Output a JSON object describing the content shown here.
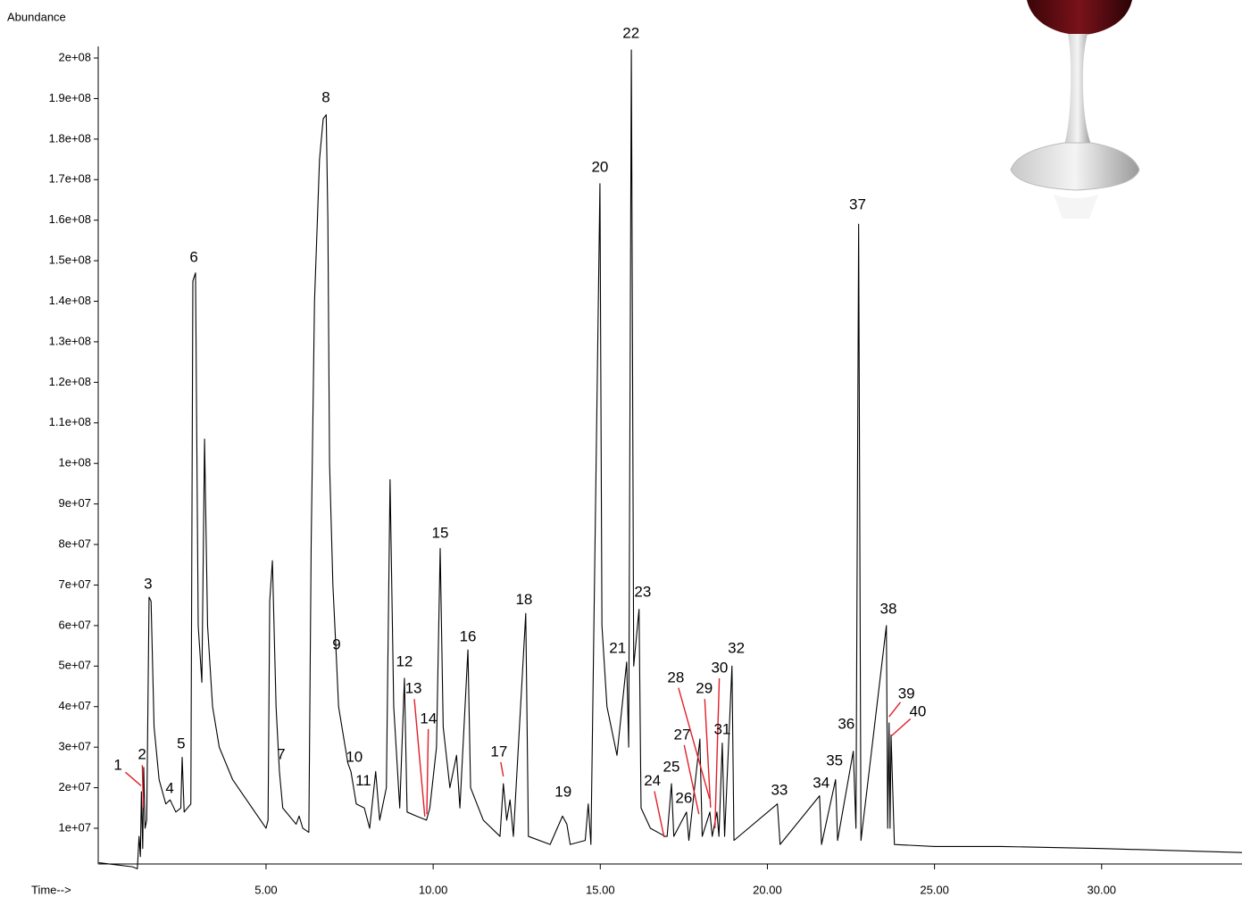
{
  "chart_data": {
    "type": "line",
    "y_axis_label": "Abundance",
    "x_axis_label": "Time-->",
    "xlim": [
      0,
      34.2
    ],
    "ylim": [
      0,
      205000000.0
    ],
    "xticks": [
      {
        "value": 5,
        "label": "5.00"
      },
      {
        "value": 10,
        "label": "10.00"
      },
      {
        "value": 15,
        "label": "15.00"
      },
      {
        "value": 20,
        "label": "20.00"
      },
      {
        "value": 25,
        "label": "25.00"
      },
      {
        "value": 30,
        "label": "30.00"
      }
    ],
    "yticks": [
      {
        "value": 10000000.0,
        "label": "1e+07"
      },
      {
        "value": 20000000.0,
        "label": "2e+07"
      },
      {
        "value": 30000000.0,
        "label": "3e+07"
      },
      {
        "value": 40000000.0,
        "label": "4e+07"
      },
      {
        "value": 50000000.0,
        "label": "5e+07"
      },
      {
        "value": 60000000.0,
        "label": "6e+07"
      },
      {
        "value": 70000000.0,
        "label": "7e+07"
      },
      {
        "value": 80000000.0,
        "label": "8e+07"
      },
      {
        "value": 90000000.0,
        "label": "9e+07"
      },
      {
        "value": 100000000.0,
        "label": "1e+08"
      },
      {
        "value": 110000000.0,
        "label": "1.1e+08"
      },
      {
        "value": 120000000.0,
        "label": "1.2e+08"
      },
      {
        "value": 130000000.0,
        "label": "1.3e+08"
      },
      {
        "value": 140000000.0,
        "label": "1.4e+08"
      },
      {
        "value": 150000000.0,
        "label": "1.5e+08"
      },
      {
        "value": 160000000.0,
        "label": "1.6e+08"
      },
      {
        "value": 170000000.0,
        "label": "1.7e+08"
      },
      {
        "value": 180000000.0,
        "label": "1.8e+08"
      },
      {
        "value": 190000000.0,
        "label": "1.9e+08"
      },
      {
        "value": 200000000.0,
        "label": "2e+08"
      }
    ],
    "x": [
      0,
      1.0,
      1.15,
      1.2,
      1.24,
      1.27,
      1.31,
      1.34,
      1.38,
      1.43,
      1.5,
      1.56,
      1.65,
      1.8,
      2.0,
      2.13,
      2.3,
      2.45,
      2.49,
      2.55,
      2.75,
      2.81,
      2.89,
      2.97,
      3.08,
      3.16,
      3.25,
      3.4,
      3.6,
      4.0,
      4.5,
      5.0,
      5.06,
      5.11,
      5.19,
      5.3,
      5.4,
      5.5,
      5.9,
      5.99,
      6.1,
      6.28,
      6.35,
      6.45,
      6.6,
      6.71,
      6.8,
      6.85,
      6.9,
      7.0,
      7.11,
      7.17,
      7.45,
      7.54,
      7.7,
      7.94,
      8.1,
      8.28,
      8.4,
      8.6,
      8.71,
      8.82,
      9.0,
      9.14,
      9.22,
      9.5,
      9.8,
      9.9,
      10.1,
      10.21,
      10.3,
      10.5,
      10.7,
      10.8,
      11.04,
      11.12,
      11.5,
      12.0,
      12.1,
      12.2,
      12.3,
      12.4,
      12.77,
      12.85,
      13.5,
      13.87,
      14.0,
      14.1,
      14.55,
      14.64,
      14.72,
      14.99,
      15.05,
      15.2,
      15.5,
      15.79,
      15.85,
      15.93,
      16.0,
      16.16,
      16.22,
      16.5,
      16.94,
      17.0,
      17.13,
      17.2,
      17.58,
      17.65,
      17.98,
      18.05,
      18.28,
      18.35,
      18.49,
      18.55,
      18.65,
      18.72,
      18.94,
      19.0,
      20.3,
      20.38,
      21.56,
      21.62,
      22.04,
      22.1,
      22.57,
      22.65,
      22.73,
      22.8,
      23.56,
      23.6,
      23.64,
      23.67,
      23.7,
      23.8,
      25.0,
      27.0,
      30.0,
      34.2
    ],
    "series": [
      {
        "color": "#000000",
        "values": [
          1500000.0,
          500000.0,
          0,
          8000000.0,
          3000000.0,
          19000000.0,
          5000000.0,
          25000000.0,
          10000000.0,
          12000000.0,
          67000000.0,
          66000000.0,
          35000000.0,
          22000000.0,
          16000000.0,
          17000000.0,
          14000000.0,
          15000000.0,
          27500000.0,
          14000000.0,
          16000000.0,
          145000000.0,
          147000000.0,
          60000000.0,
          46000000.0,
          106000000.0,
          60000000.0,
          40000000.0,
          30000000.0,
          22000000.0,
          16000000.0,
          10000000.0,
          12000000.0,
          66000000.0,
          76000000.0,
          40000000.0,
          24000000.0,
          15000000.0,
          11000000.0,
          13000000.0,
          10000000.0,
          9000000.0,
          80000000.0,
          140000000.0,
          175000000.0,
          185000000.0,
          186000000.0,
          160000000.0,
          100000000.0,
          70000000.0,
          51000000.0,
          40000000.0,
          26000000.0,
          24000000.0,
          16000000.0,
          15000000.0,
          10000000.0,
          24000000.0,
          12000000.0,
          20000000.0,
          96000000.0,
          40000000.0,
          15000000.0,
          47000000.0,
          14000000.0,
          13000000.0,
          12000000.0,
          15000000.0,
          30000000.0,
          79000000.0,
          35000000.0,
          20000000.0,
          28000000.0,
          15000000.0,
          54000000.0,
          20000000.0,
          12000000.0,
          8000000.0,
          21000000.0,
          12000000.0,
          17000000.0,
          8000000.0,
          63000000.0,
          8000000.0,
          6000000.0,
          13000000.0,
          11000000.0,
          6000000.0,
          7000000.0,
          16000000.0,
          6000000.0,
          169000000.0,
          60000000.0,
          40000000.0,
          28000000.0,
          51000000.0,
          30000000.0,
          202000000.0,
          50000000.0,
          64000000.0,
          15000000.0,
          10000000.0,
          8000000.0,
          8000000.0,
          21000000.0,
          8000000.0,
          14000000.0,
          7000000.0,
          32000000.0,
          8000000.0,
          14000000.0,
          8000000.0,
          14000000.0,
          8000000.0,
          31000000.0,
          8000000.0,
          50000000.0,
          7000000.0,
          16000000.0,
          6000000.0,
          18000000.0,
          6000000.0,
          22000000.0,
          7000000.0,
          29000000.0,
          10000000.0,
          159000000.0,
          7000000.0,
          60000000.0,
          10000000.0,
          36000000.0,
          10000000.0,
          33000000.0,
          6000000.0,
          5500000.0,
          5500000.0,
          5000000.0,
          4000000.0
        ]
      }
    ],
    "annotations": [
      {
        "label": "1",
        "x": 0.57,
        "y": 25400000.0,
        "arrow_to": [
          1.26,
          20500000.0
        ]
      },
      {
        "label": "2",
        "x": 1.29,
        "y": 28000000.0,
        "arrow_to": [
          1.33,
          15000000.0
        ]
      },
      {
        "label": "3",
        "x": 1.47,
        "y": 70100000.0
      },
      {
        "label": "4",
        "x": 2.12,
        "y": 19700000.0
      },
      {
        "label": "5",
        "x": 2.46,
        "y": 30700000.0
      },
      {
        "label": "6",
        "x": 2.84,
        "y": 150700000.0
      },
      {
        "label": "7",
        "x": 5.45,
        "y": 28000000.0
      },
      {
        "label": "8",
        "x": 6.79,
        "y": 190100000.0
      },
      {
        "label": "9",
        "x": 7.11,
        "y": 55100000.0
      },
      {
        "label": "10",
        "x": 7.64,
        "y": 27400000.0
      },
      {
        "label": "11",
        "x": 7.91,
        "y": 21500000.0
      },
      {
        "label": "12",
        "x": 9.14,
        "y": 50900000.0
      },
      {
        "label": "13",
        "x": 9.41,
        "y": 44300000.0,
        "arrow_to": [
          9.75,
          12900000.0
        ]
      },
      {
        "label": "14",
        "x": 9.86,
        "y": 36900000.0,
        "arrow_to": [
          9.81,
          13500000.0
        ]
      },
      {
        "label": "15",
        "x": 10.21,
        "y": 82700000.0
      },
      {
        "label": "16",
        "x": 11.04,
        "y": 57100000.0
      },
      {
        "label": "17",
        "x": 11.97,
        "y": 28700000.0,
        "arrow_to": [
          12.1,
          22800000.0
        ]
      },
      {
        "label": "18",
        "x": 12.72,
        "y": 66300000.0
      },
      {
        "label": "19",
        "x": 13.89,
        "y": 18800000.0
      },
      {
        "label": "20",
        "x": 14.99,
        "y": 172900000.0
      },
      {
        "label": "21",
        "x": 15.52,
        "y": 54200000.0
      },
      {
        "label": "22",
        "x": 15.92,
        "y": 205900000.0
      },
      {
        "label": "23",
        "x": 16.27,
        "y": 68100000.0
      },
      {
        "label": "24",
        "x": 16.56,
        "y": 21500000.0,
        "arrow_to": [
          16.91,
          7800000.0
        ]
      },
      {
        "label": "25",
        "x": 17.13,
        "y": 25000000.0
      },
      {
        "label": "26",
        "x": 17.5,
        "y": 17300000.0
      },
      {
        "label": "27",
        "x": 17.45,
        "y": 32900000.0,
        "arrow_to": [
          17.95,
          13500000.0
        ]
      },
      {
        "label": "28",
        "x": 17.26,
        "y": 47000000.0,
        "arrow_to": [
          18.27,
          17300000.0
        ]
      },
      {
        "label": "29",
        "x": 18.11,
        "y": 44300000.0,
        "arrow_to": [
          18.3,
          15100000.0
        ]
      },
      {
        "label": "30",
        "x": 18.57,
        "y": 49400000.0,
        "arrow_to": [
          18.43,
          10000000.0
        ]
      },
      {
        "label": "31",
        "x": 18.65,
        "y": 34200000.0
      },
      {
        "label": "32",
        "x": 19.07,
        "y": 54200000.0
      },
      {
        "label": "33",
        "x": 20.36,
        "y": 19200000.0
      },
      {
        "label": "34",
        "x": 21.61,
        "y": 21000000.0
      },
      {
        "label": "35",
        "x": 22.01,
        "y": 26500000.0
      },
      {
        "label": "36",
        "x": 22.36,
        "y": 35500000.0
      },
      {
        "label": "37",
        "x": 22.7,
        "y": 163700000.0
      },
      {
        "label": "38",
        "x": 23.62,
        "y": 63900000.0
      },
      {
        "label": "39",
        "x": 24.16,
        "y": 43000000.0,
        "arrow_to": [
          23.64,
          37500000.0
        ]
      },
      {
        "label": "40",
        "x": 24.5,
        "y": 38600000.0,
        "arrow_to": [
          23.7,
          32700000.0
        ]
      }
    ],
    "annotation_arrow_color": "#e0202a"
  }
}
